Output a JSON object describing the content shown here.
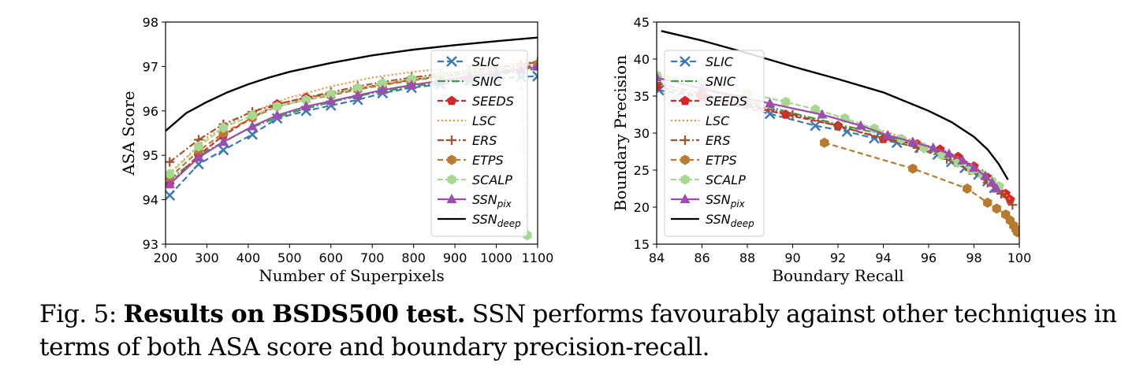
{
  "caption": {
    "label": "Fig. 5:",
    "title": "Results on BSDS500 test.",
    "text": "SSN performs favourably against other techniques in terms of both ASA score and boundary precision-recall."
  },
  "chart_data": [
    {
      "type": "line",
      "title": "",
      "xlabel": "Number of Superpixels",
      "ylabel": "ASA Score",
      "xlim": [
        200,
        1100
      ],
      "ylim": [
        93,
        98
      ],
      "xticks": [
        200,
        300,
        400,
        500,
        600,
        700,
        800,
        900,
        1000,
        1100
      ],
      "yticks": [
        93,
        94,
        95,
        96,
        97,
        98
      ],
      "legend": "top-right",
      "series": [
        {
          "name": "SLIC",
          "color": "#3a7bb5",
          "dash": "8,4",
          "marker": "x",
          "x": [
            210,
            280,
            340,
            410,
            470,
            540,
            600,
            665,
            725,
            795,
            865,
            935,
            1000,
            1060,
            1100
          ],
          "y": [
            94.1,
            94.8,
            95.12,
            95.47,
            95.83,
            96.0,
            96.12,
            96.25,
            96.4,
            96.52,
            96.6,
            96.68,
            96.73,
            96.77,
            96.78
          ]
        },
        {
          "name": "SNIC",
          "color": "#3aa044",
          "dash": "10,3,2,3",
          "marker": "",
          "x": [
            210,
            300,
            400,
            500,
            600,
            700,
            800,
            900,
            1000,
            1100
          ],
          "y": [
            94.45,
            95.1,
            95.6,
            95.95,
            96.2,
            96.4,
            96.55,
            96.7,
            96.82,
            96.95
          ]
        },
        {
          "name": "SEEDS",
          "color": "#d62728",
          "dash": "7,3",
          "marker": "pentagon",
          "x": [
            210,
            280,
            340,
            410,
            470,
            540,
            600,
            665,
            725,
            795,
            865,
            935,
            1000,
            1060,
            1100
          ],
          "y": [
            94.35,
            95.0,
            95.45,
            95.85,
            96.15,
            96.3,
            96.38,
            96.5,
            96.6,
            96.7,
            96.78,
            96.85,
            96.9,
            96.95,
            97.0
          ]
        },
        {
          "name": "LSC",
          "color": "#ff8c3c",
          "dash": "2,3",
          "marker": "",
          "x": [
            210,
            300,
            400,
            500,
            600,
            700,
            800,
            900,
            1000,
            1100
          ],
          "y": [
            94.6,
            95.4,
            95.95,
            96.3,
            96.55,
            96.75,
            96.88,
            96.98,
            97.05,
            97.1
          ]
        },
        {
          "name": "ERS",
          "color": "#a0522d",
          "dash": "8,3,2,3",
          "marker": "plus",
          "x": [
            210,
            280,
            340,
            410,
            470,
            540,
            600,
            665,
            725,
            795,
            865,
            935,
            1000,
            1060,
            1100
          ],
          "y": [
            94.85,
            95.35,
            95.7,
            95.98,
            96.15,
            96.3,
            96.42,
            96.55,
            96.65,
            96.75,
            96.83,
            96.9,
            96.98,
            97.04,
            97.1
          ]
        },
        {
          "name": "ETPS",
          "color": "#b87a2e",
          "dash": "7,4",
          "marker": "hexagon",
          "x": [
            210,
            280,
            340,
            410,
            470,
            540,
            600,
            665,
            725,
            795,
            865,
            935,
            1000,
            1060,
            1100
          ],
          "y": [
            94.5,
            95.1,
            95.5,
            95.85,
            96.1,
            96.25,
            96.35,
            96.48,
            96.58,
            96.68,
            96.77,
            96.85,
            96.92,
            96.98,
            97.05
          ]
        },
        {
          "name": "SCALP",
          "color": "#a6d88f",
          "dash": "7,3",
          "marker": "hexagon",
          "x": [
            210,
            280,
            340,
            410,
            470,
            540,
            600,
            665,
            725,
            795,
            865,
            935,
            1000,
            1060,
            1075
          ],
          "y": [
            94.58,
            95.2,
            95.62,
            95.9,
            96.1,
            96.25,
            96.38,
            96.52,
            96.62,
            96.72,
            96.8,
            96.87,
            96.92,
            96.95,
            93.2
          ]
        },
        {
          "name": "SSN_pix",
          "color": "#9b4db0",
          "dash": "",
          "marker": "triangle",
          "x": [
            210,
            280,
            340,
            410,
            470,
            540,
            600,
            665,
            725,
            795,
            865,
            935,
            1000,
            1060,
            1100
          ],
          "y": [
            94.35,
            94.95,
            95.3,
            95.65,
            95.9,
            96.1,
            96.22,
            96.35,
            96.47,
            96.58,
            96.68,
            96.78,
            96.86,
            96.93,
            97.0
          ]
        },
        {
          "name": "SSN_deep",
          "color": "#000000",
          "dash": "",
          "marker": "",
          "x": [
            200,
            250,
            300,
            350,
            400,
            450,
            500,
            600,
            700,
            800,
            900,
            1000,
            1100
          ],
          "y": [
            95.55,
            95.95,
            96.2,
            96.42,
            96.6,
            96.75,
            96.88,
            97.08,
            97.25,
            97.38,
            97.48,
            97.57,
            97.65
          ]
        }
      ]
    },
    {
      "type": "line",
      "title": "",
      "xlabel": "Boundary Recall",
      "ylabel": "Boundary Precision",
      "xlim": [
        84,
        100
      ],
      "ylim": [
        15,
        45
      ],
      "xticks": [
        84,
        86,
        88,
        90,
        92,
        94,
        96,
        98,
        100
      ],
      "yticks": [
        15,
        20,
        25,
        30,
        35,
        40,
        45
      ],
      "legend": "top-left",
      "series": [
        {
          "name": "SLIC",
          "color": "#3a7bb5",
          "dash": "8,4",
          "marker": "x",
          "x": [
            84.1,
            86.0,
            89.0,
            91.0,
            92.4,
            93.6,
            94.6,
            95.6,
            96.4,
            97.0,
            97.6,
            98.2,
            98.6,
            98.9
          ],
          "y": [
            35.8,
            34.8,
            32.6,
            31.0,
            30.2,
            29.3,
            28.7,
            28.0,
            27.1,
            26.1,
            25.3,
            24.4,
            23.5,
            22.6
          ]
        },
        {
          "name": "SNIC",
          "color": "#3aa044",
          "dash": "10,3,2,3",
          "marker": "",
          "x": [
            84.0,
            86.0,
            88.0,
            90.0,
            92.0,
            94.0,
            96.0,
            97.0,
            98.0,
            98.8,
            99.2
          ],
          "y": [
            37.5,
            36.0,
            34.3,
            32.7,
            31.2,
            29.8,
            27.8,
            26.5,
            24.8,
            23.0,
            21.8
          ]
        },
        {
          "name": "SEEDS",
          "color": "#d62728",
          "dash": "7,3",
          "marker": "pentagon",
          "x": [
            84.0,
            86.0,
            89.7,
            92.0,
            94.0,
            95.5,
            96.5,
            97.3,
            98.0,
            98.6,
            99.1,
            99.4,
            99.6
          ],
          "y": [
            36.3,
            35.0,
            32.5,
            31.0,
            29.2,
            28.5,
            27.8,
            26.8,
            25.5,
            24.0,
            22.8,
            21.8,
            21.0
          ]
        },
        {
          "name": "LSC",
          "color": "#ff8c3c",
          "dash": "2,3",
          "marker": "",
          "x": [
            84.0,
            86.0,
            88.0,
            90.0,
            92.0,
            94.0,
            96.0,
            97.5,
            98.5,
            99.2,
            99.6
          ],
          "y": [
            37.8,
            36.3,
            34.8,
            33.3,
            32.0,
            30.3,
            28.3,
            26.5,
            24.5,
            22.5,
            21.0
          ]
        },
        {
          "name": "ERS",
          "color": "#a0522d",
          "dash": "8,3,2,3",
          "marker": "plus",
          "x": [
            84.0,
            86.0,
            88.0,
            90.0,
            92.0,
            94.0,
            95.5,
            96.8,
            97.8,
            98.6,
            99.2,
            99.7
          ],
          "y": [
            36.8,
            35.3,
            33.9,
            32.5,
            31.0,
            29.3,
            28.0,
            26.5,
            25.0,
            23.3,
            21.8,
            20.3
          ]
        },
        {
          "name": "ETPS",
          "color": "#b87a2e",
          "dash": "7,4",
          "marker": "hexagon",
          "x": [
            91.4,
            95.3,
            97.7,
            98.6,
            99.0,
            99.4,
            99.6,
            99.75,
            99.85,
            99.92
          ],
          "y": [
            28.7,
            25.2,
            22.5,
            20.6,
            19.8,
            19.0,
            18.2,
            17.5,
            17.0,
            16.6
          ]
        },
        {
          "name": "SCALP",
          "color": "#a6d88f",
          "dash": "7,3",
          "marker": "hexagon",
          "x": [
            84.0,
            86.0,
            88.0,
            89.7,
            91.0,
            92.3,
            93.6,
            94.8,
            95.8,
            96.6,
            97.3,
            97.9,
            98.4,
            98.8,
            99.1
          ],
          "y": [
            37.8,
            36.8,
            35.4,
            34.2,
            33.2,
            32.0,
            30.6,
            29.2,
            28.0,
            27.0,
            26.0,
            25.0,
            24.3,
            23.5,
            22.8
          ]
        },
        {
          "name": "SSN_pix",
          "color": "#9b4db0",
          "dash": "",
          "marker": "triangle",
          "x": [
            84.0,
            86.0,
            89.0,
            91.3,
            93.0,
            94.2,
            95.3,
            96.2,
            96.9,
            97.5,
            98.0,
            98.5,
            98.8,
            99.0
          ],
          "y": [
            37.5,
            36.0,
            34.0,
            32.5,
            31.0,
            29.7,
            28.8,
            28.0,
            27.2,
            26.3,
            25.3,
            24.2,
            23.3,
            22.5
          ]
        },
        {
          "name": "SSN_deep",
          "color": "#000000",
          "dash": "",
          "marker": "",
          "x": [
            84.2,
            86.0,
            88.0,
            90.0,
            92.0,
            94.0,
            96.0,
            97.0,
            98.0,
            98.6,
            99.1,
            99.5
          ],
          "y": [
            43.8,
            42.5,
            40.8,
            39.0,
            37.3,
            35.5,
            33.0,
            31.5,
            29.5,
            27.8,
            25.8,
            23.7
          ]
        }
      ]
    }
  ]
}
